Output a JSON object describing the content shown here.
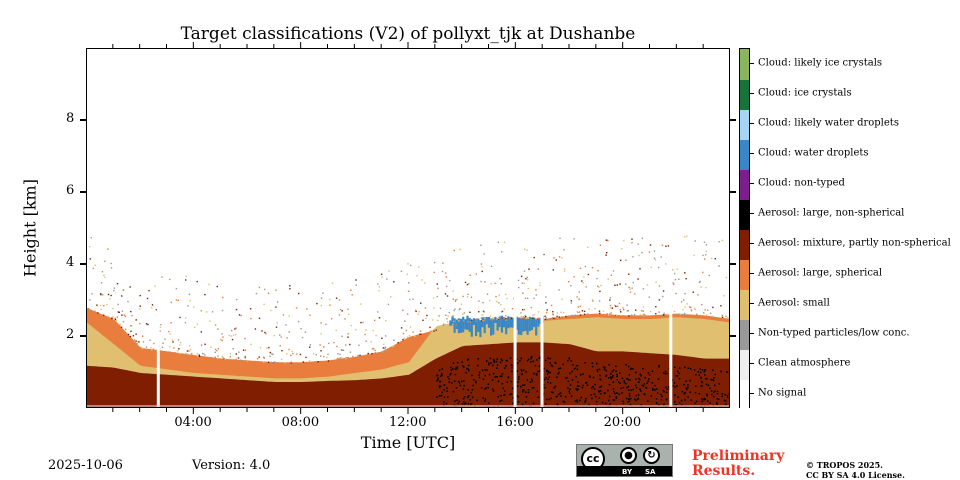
{
  "chart_data": {
    "type": "heatmap",
    "title": "Target classifications (V2) of pollyxt_tjk at Dushanbe",
    "xlabel": "Time [UTC]",
    "ylabel": "Height [km]",
    "xlim_hours": [
      0,
      24
    ],
    "ylim_km": [
      0,
      10
    ],
    "x_ticks": [
      {
        "value": 4,
        "label": "04:00"
      },
      {
        "value": 8,
        "label": "08:00"
      },
      {
        "value": 12,
        "label": "12:00"
      },
      {
        "value": 16,
        "label": "16:00"
      },
      {
        "value": 20,
        "label": "20:00"
      }
    ],
    "y_ticks": [
      {
        "value": 2,
        "label": "2"
      },
      {
        "value": 4,
        "label": "4"
      },
      {
        "value": 6,
        "label": "6"
      },
      {
        "value": 8,
        "label": "8"
      }
    ],
    "classes": [
      {
        "label": "No signal",
        "color": "#ffffff"
      },
      {
        "label": "Clean atmosphere",
        "color": "#eeeeee"
      },
      {
        "label": "Non-typed particles/low conc.",
        "color": "#999999"
      },
      {
        "label": "Aerosol: small",
        "color": "#e0c070"
      },
      {
        "label": "Aerosol: large, spherical",
        "color": "#e87d3e"
      },
      {
        "label": "Aerosol: mixture, partly non-spherical",
        "color": "#7f1e00"
      },
      {
        "label": "Aerosol: large, non-spherical",
        "color": "#000000"
      },
      {
        "label": "Cloud: non-typed",
        "color": "#7a1f8c"
      },
      {
        "label": "Cloud: water droplets",
        "color": "#3a87c8"
      },
      {
        "label": "Cloud: likely water droplets",
        "color": "#a6d4f5"
      },
      {
        "label": "Cloud: ice crystals",
        "color": "#17733a"
      },
      {
        "label": "Cloud: likely ice crystals",
        "color": "#8ab45e"
      }
    ],
    "layers": [
      {
        "class": "Aerosol: mixture, partly non-spherical",
        "top_km": [
          1.2,
          1.15,
          1.0,
          0.95,
          0.9,
          0.85,
          0.8,
          0.75,
          0.75,
          0.78,
          0.8,
          0.85,
          0.95,
          1.4,
          1.75,
          1.8,
          1.85,
          1.85,
          1.8,
          1.6,
          1.6,
          1.55,
          1.5,
          1.4,
          1.4
        ]
      },
      {
        "class": "Aerosol: large, spherical",
        "top_km": [
          2.8,
          2.5,
          1.7,
          1.6,
          1.5,
          1.4,
          1.35,
          1.3,
          1.3,
          1.35,
          1.45,
          1.6,
          2.0,
          2.2,
          2.4,
          2.5,
          2.55,
          2.5,
          2.6,
          2.65,
          2.6,
          2.6,
          2.65,
          2.6,
          2.5
        ]
      },
      {
        "class": "Aerosol: small",
        "top_km": [
          2.4,
          1.8,
          1.2,
          1.1,
          1.0,
          0.95,
          0.9,
          0.85,
          0.85,
          0.9,
          1.0,
          1.1,
          1.3,
          2.3,
          2.45,
          2.45,
          2.5,
          2.45,
          2.5,
          2.55,
          2.5,
          2.5,
          2.55,
          2.5,
          2.4
        ]
      }
    ],
    "cloud_water_top_km": 2.6,
    "cloud_water_hours": [
      13.5,
      17.0
    ],
    "signal_gaps_hours": [
      2.6,
      15.9,
      16.9,
      21.7
    ]
  },
  "footer": {
    "date": "2025-10-06",
    "version": "Version: 4.0",
    "license_badge": {
      "icon": "cc-by-sa-icon",
      "left": "cc",
      "by": "BY",
      "sa": "SA"
    },
    "preliminary_line1": "Preliminary",
    "preliminary_line2": "Results.",
    "copyright_line1": "© TROPOS 2025.",
    "copyright_line2": "CC BY SA 4.0 License."
  }
}
